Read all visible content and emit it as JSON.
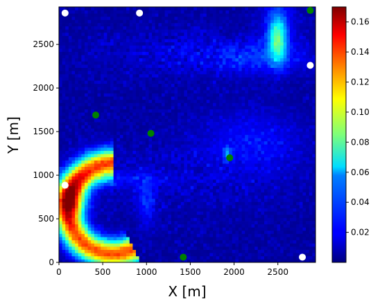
{
  "chart_data": {
    "type": "heatmap",
    "xlabel": "X [m]",
    "ylabel": "Y [m]",
    "xlim": [
      0,
      2930
    ],
    "ylim": [
      0,
      2930
    ],
    "x_ticks": [
      "0",
      "500",
      "1000",
      "1500",
      "2000",
      "2500"
    ],
    "y_ticks": [
      "0",
      "500",
      "1000",
      "1500",
      "2000",
      "2500"
    ],
    "colorbar": {
      "colormap": "jet",
      "range": [
        0.0,
        0.17
      ],
      "ticks": [
        "0.02",
        "0.04",
        "0.06",
        "0.08",
        "0.10",
        "0.12",
        "0.14",
        "0.16"
      ]
    },
    "white_points": [
      {
        "x": 70,
        "y": 2860
      },
      {
        "x": 920,
        "y": 2860
      },
      {
        "x": 2870,
        "y": 2260
      },
      {
        "x": 70,
        "y": 885
      },
      {
        "x": 2780,
        "y": 60
      }
    ],
    "green_points": [
      {
        "x": 2870,
        "y": 2890
      },
      {
        "x": 420,
        "y": 1690
      },
      {
        "x": 1050,
        "y": 1480
      },
      {
        "x": 1950,
        "y": 1200
      },
      {
        "x": 1420,
        "y": 60
      }
    ],
    "colors": {
      "white_point": "#ffffff",
      "green_point": "#008000"
    }
  }
}
